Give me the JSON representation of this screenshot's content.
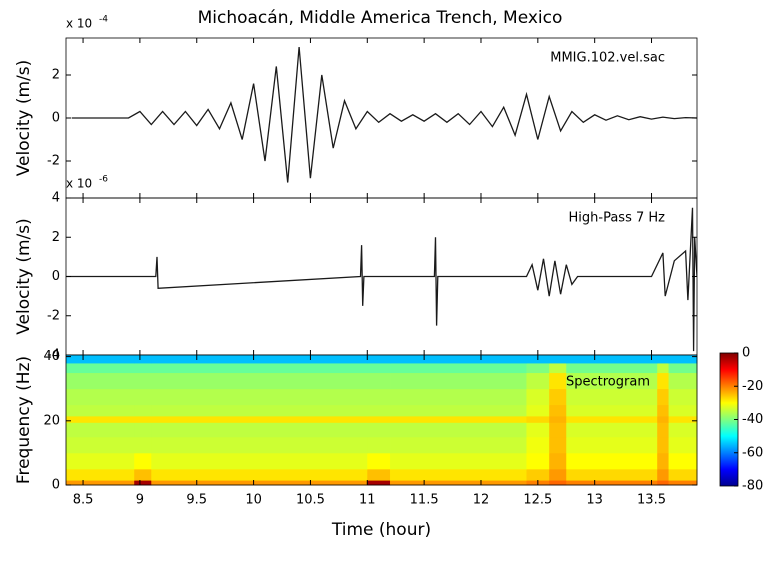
{
  "chart_data": [
    {
      "type": "line",
      "title": "Michoacán, Middle America Trench, Mexico",
      "y_label": "Velocity (m/s)",
      "multiplier": {
        "base": "x 10",
        "exponent": "-4"
      },
      "annotation": "MMIG.102.vel.sac",
      "color": "#1a1a1a",
      "x": [
        8.4,
        8.5,
        8.6,
        8.7,
        8.8,
        8.9,
        9.0,
        9.1,
        9.2,
        9.3,
        9.4,
        9.5,
        9.6,
        9.7,
        9.8,
        9.9,
        10.0,
        10.1,
        10.2,
        10.3,
        10.4,
        10.5,
        10.6,
        10.7,
        10.8,
        10.9,
        11.0,
        11.1,
        11.2,
        11.3,
        11.4,
        11.5,
        11.6,
        11.7,
        11.8,
        11.9,
        12.0,
        12.1,
        12.2,
        12.3,
        12.4,
        12.5,
        12.6,
        12.7,
        12.8,
        12.9,
        13.0,
        13.1,
        13.2,
        13.3,
        13.4,
        13.5,
        13.6,
        13.7,
        13.8,
        13.9
      ],
      "values": [
        0,
        0,
        0,
        0,
        0,
        0,
        0.3,
        -0.3,
        0.3,
        -0.3,
        0.3,
        -0.35,
        0.4,
        -0.5,
        0.7,
        -1.0,
        1.6,
        -2.0,
        2.4,
        -3.0,
        3.3,
        -2.8,
        2.0,
        -1.4,
        0.8,
        -0.5,
        0.3,
        -0.2,
        0.2,
        -0.15,
        0.15,
        -0.15,
        0.2,
        -0.2,
        0.2,
        -0.3,
        0.3,
        -0.4,
        0.5,
        -0.8,
        1.1,
        -1.0,
        1.0,
        -0.6,
        0.3,
        -0.2,
        0.15,
        -0.1,
        0.1,
        -0.08,
        0.06,
        -0.05,
        0.04,
        -0.03,
        0.02,
        0
      ],
      "xlim": [
        8.35,
        13.9
      ],
      "ylim": [
        -3.72,
        3.72
      ],
      "yticks": [
        -2,
        0,
        2
      ]
    },
    {
      "type": "line",
      "y_label": "Velocity (m/s)",
      "multiplier": {
        "base": "x 10",
        "exponent": "-6"
      },
      "annotation": "High-Pass 7 Hz",
      "color": "#1a1a1a",
      "x": [
        8.35,
        9.14,
        9.15,
        9.16,
        10.94,
        10.95,
        10.96,
        10.97,
        11.59,
        11.6,
        11.61,
        11.62,
        12.4,
        12.45,
        12.5,
        12.55,
        12.6,
        12.65,
        12.7,
        12.75,
        12.8,
        12.85,
        13.5,
        13.6,
        13.62,
        13.7,
        13.8,
        13.82,
        13.86,
        13.87,
        13.88,
        13.9
      ],
      "values": [
        0,
        0,
        1.0,
        -0.6,
        0,
        1.6,
        -1.5,
        0,
        0,
        2.0,
        -2.5,
        0,
        0,
        0.6,
        -0.7,
        0.9,
        -1.0,
        0.8,
        -0.9,
        0.6,
        -0.4,
        0,
        0,
        1.2,
        -1.0,
        0.8,
        1.3,
        -1.2,
        3.5,
        -3.8,
        2.0,
        0
      ],
      "xlim": [
        8.35,
        13.9
      ],
      "ylim": [
        -4,
        4
      ],
      "yticks": [
        -4,
        -2,
        0,
        2,
        4
      ]
    },
    {
      "type": "heatmap",
      "y_label": "Frequency (Hz)",
      "x_label": "Time (hour)",
      "annotation": "Spectrogram",
      "colormap": "jet",
      "x_bins": [
        8.35,
        8.95,
        9.1,
        11.0,
        11.2,
        12.4,
        12.6,
        12.75,
        13.55,
        13.65,
        13.9
      ],
      "y_bins": [
        0,
        1.5,
        5,
        10,
        15,
        19.5,
        21.5,
        25,
        30,
        35,
        38,
        40.5
      ],
      "values": [
        [
          -22,
          -3,
          -22,
          -3,
          -22,
          -20,
          -18,
          -20,
          -18,
          -20
        ],
        [
          -28,
          -25,
          -28,
          -25,
          -28,
          -26,
          -22,
          -27,
          -22,
          -27
        ],
        [
          -32,
          -30,
          -32,
          -30,
          -32,
          -30,
          -24,
          -30,
          -24,
          -30
        ],
        [
          -34,
          -34,
          -34,
          -34,
          -34,
          -31,
          -25,
          -32,
          -25,
          -32
        ],
        [
          -35,
          -35,
          -35,
          -35,
          -35,
          -32,
          -25,
          -33,
          -25,
          -33
        ],
        [
          -28,
          -28,
          -28,
          -28,
          -28,
          -27,
          -24,
          -28,
          -24,
          -28
        ],
        [
          -35,
          -35,
          -35,
          -35,
          -35,
          -32,
          -25,
          -33,
          -25,
          -33
        ],
        [
          -36,
          -36,
          -36,
          -36,
          -36,
          -33,
          -26,
          -34,
          -26,
          -34
        ],
        [
          -38,
          -38,
          -38,
          -38,
          -38,
          -35,
          -28,
          -36,
          -28,
          -36
        ],
        [
          -42,
          -42,
          -42,
          -42,
          -42,
          -40,
          -35,
          -41,
          -35,
          -41
        ],
        [
          -55,
          -55,
          -55,
          -55,
          -55,
          -55,
          -55,
          -55,
          -55,
          -55
        ]
      ],
      "clim": [
        -80,
        0
      ],
      "cticks": [
        0,
        -20,
        -40,
        -60,
        -80
      ],
      "xlim": [
        8.35,
        13.9
      ],
      "xticks": [
        8.5,
        9,
        9.5,
        10,
        10.5,
        11,
        11.5,
        12,
        12.5,
        13,
        13.5
      ],
      "ylim": [
        0,
        40.5
      ],
      "yticks": [
        0,
        20,
        40
      ]
    }
  ]
}
